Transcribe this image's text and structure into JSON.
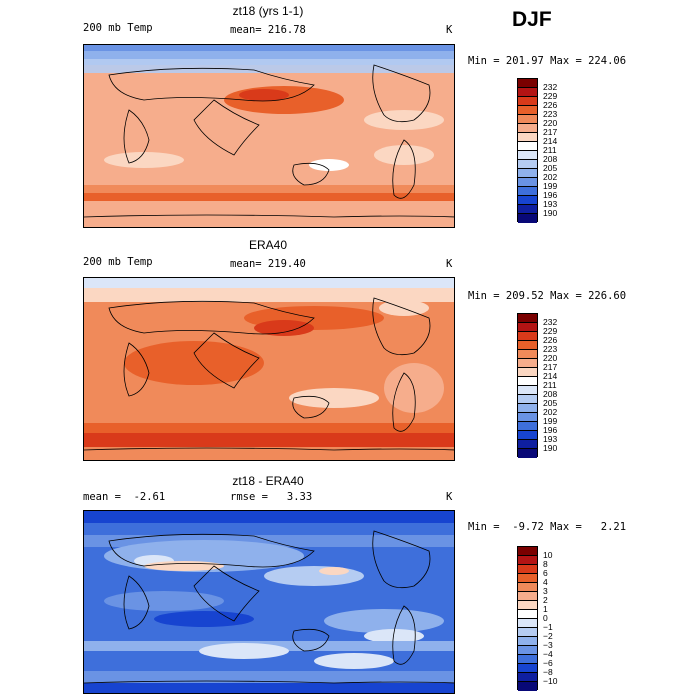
{
  "season": "DJF",
  "units": "K",
  "panels": [
    {
      "title": "zt18 (yrs 1-1)",
      "left_label": "200 mb Temp",
      "center_label": "mean= 216.78",
      "minmax": "Min = 201.97 Max = 224.06",
      "levels": [
        "232",
        "229",
        "226",
        "223",
        "220",
        "217",
        "214",
        "211",
        "208",
        "205",
        "202",
        "199",
        "196",
        "193",
        "190"
      ],
      "colors": [
        "#7a0000",
        "#b31414",
        "#d93a1a",
        "#e8602a",
        "#f08a5a",
        "#f6ad8c",
        "#fbd7c2",
        "#ffffff",
        "#dbe6f8",
        "#b5ccf2",
        "#8fb1ec",
        "#6a93e4",
        "#3e6fdb",
        "#1744d0",
        "#0f1fa0",
        "#080877"
      ]
    },
    {
      "title": "ERA40",
      "left_label": "200 mb Temp",
      "center_label": "mean= 219.40",
      "minmax": "Min = 209.52 Max = 226.60",
      "levels": [
        "232",
        "229",
        "226",
        "223",
        "220",
        "217",
        "214",
        "211",
        "208",
        "205",
        "202",
        "199",
        "196",
        "193",
        "190"
      ],
      "colors": [
        "#7a0000",
        "#b31414",
        "#d93a1a",
        "#e8602a",
        "#f08a5a",
        "#f6ad8c",
        "#fbd7c2",
        "#ffffff",
        "#dbe6f8",
        "#b5ccf2",
        "#8fb1ec",
        "#6a93e4",
        "#3e6fdb",
        "#1744d0",
        "#0f1fa0",
        "#080877"
      ]
    },
    {
      "title": "zt18 - ERA40",
      "left_label": "mean =  -2.61",
      "center_label": "rmse =   3.33",
      "minmax": "Min =  -9.72 Max =   2.21",
      "levels": [
        "10",
        "8",
        "6",
        "4",
        "3",
        "2",
        "1",
        "0",
        "−1",
        "−2",
        "−3",
        "−4",
        "−6",
        "−8",
        "−10"
      ],
      "colors": [
        "#7a0000",
        "#b31414",
        "#d93a1a",
        "#e8602a",
        "#f08a5a",
        "#f6ad8c",
        "#fbd7c2",
        "#ffffff",
        "#dbe6f8",
        "#b5ccf2",
        "#8fb1ec",
        "#6a93e4",
        "#3e6fdb",
        "#1744d0",
        "#0f1fa0",
        "#080877"
      ]
    }
  ]
}
